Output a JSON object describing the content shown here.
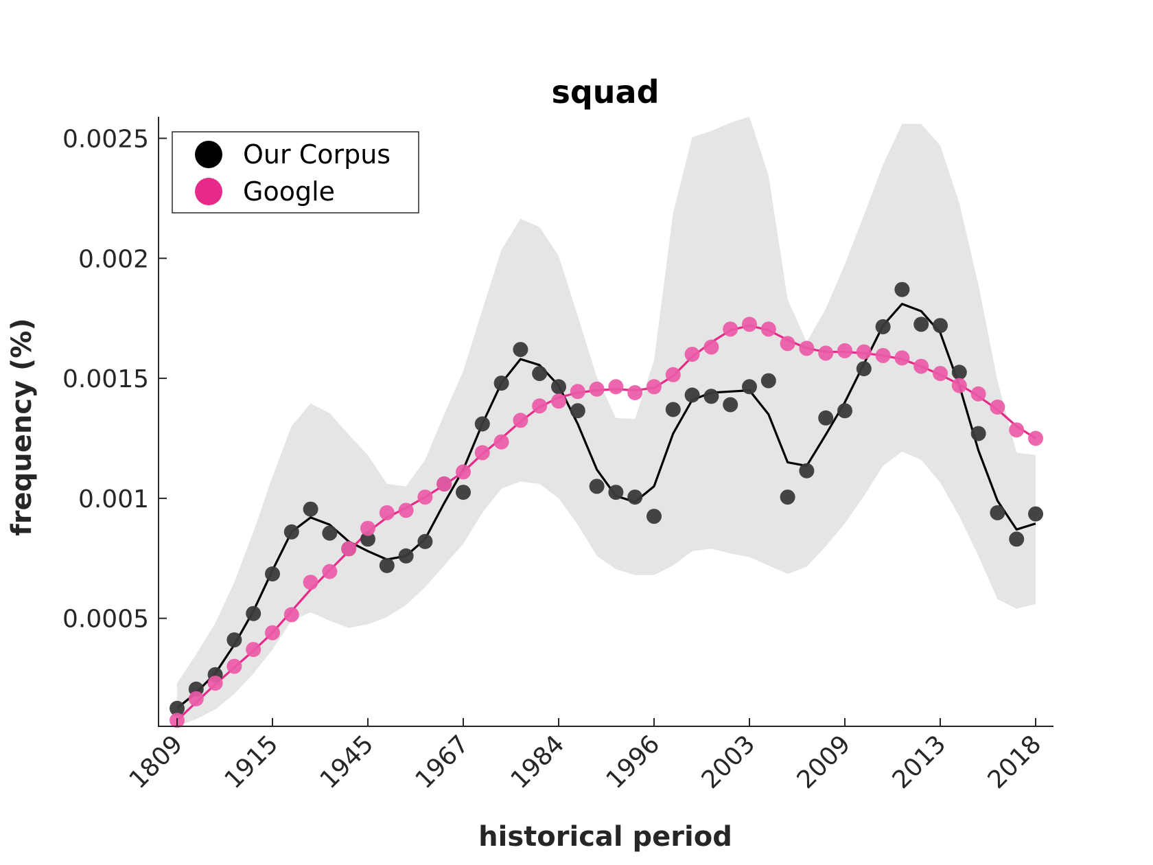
{
  "chart_data": {
    "type": "line",
    "title": "squad",
    "xlabel": "historical period",
    "ylabel": "frequency (%)",
    "x_tick_labels": [
      "1809",
      "1915",
      "1945",
      "1967",
      "1984",
      "1996",
      "2003",
      "2009",
      "2013",
      "2018"
    ],
    "y_ticks": [
      0.0005,
      0.001,
      0.0015,
      0.002,
      0.0025
    ],
    "y_tick_labels": [
      "0.0005",
      "0.001",
      "0.0015",
      "0.002",
      "0.0025"
    ],
    "ylim": [
      5e-05,
      0.00259
    ],
    "grid": false,
    "legend_position": "top-left",
    "series": [
      {
        "name": "Our Corpus",
        "color": "#000000",
        "marker_color": "#3a3a3a",
        "points": [
          0.000125,
          0.000205,
          0.000265,
          0.00041,
          0.00052,
          0.000685,
          0.00086,
          0.000955,
          0.000855,
          0.00079,
          0.00083,
          0.00072,
          0.00076,
          0.00082,
          0.00106,
          0.001025,
          0.00131,
          0.00148,
          0.00162,
          0.00152,
          0.001465,
          0.001365,
          0.00105,
          0.001025,
          0.001005,
          0.000925,
          0.00137,
          0.00143,
          0.001425,
          0.00139,
          0.001465,
          0.00149,
          0.001005,
          0.001115,
          0.001335,
          0.001365,
          0.00154,
          0.001715,
          0.00187,
          0.001725,
          0.00172,
          0.001525,
          0.00127,
          0.00094,
          0.00083,
          0.000935
        ],
        "smooth": [
          0.000125,
          0.00019,
          0.00027,
          0.00039,
          0.00053,
          0.0007,
          0.00086,
          0.00092,
          0.00089,
          0.00082,
          0.00078,
          0.000745,
          0.00076,
          0.00083,
          0.00098,
          0.00112,
          0.00131,
          0.00148,
          0.00158,
          0.001555,
          0.00147,
          0.00131,
          0.00112,
          0.00101,
          0.000985,
          0.00105,
          0.00127,
          0.00141,
          0.00144,
          0.001445,
          0.00145,
          0.00135,
          0.00115,
          0.001135,
          0.001265,
          0.0014,
          0.00156,
          0.00172,
          0.00181,
          0.00178,
          0.00169,
          0.00147,
          0.0012,
          0.00099,
          0.00087,
          0.000895
        ],
        "band_upper": [
          0.00023,
          0.00035,
          0.00048,
          0.00065,
          0.00086,
          0.00109,
          0.0013,
          0.001395,
          0.001355,
          0.001265,
          0.00118,
          0.00106,
          0.00105,
          0.00116,
          0.00135,
          0.00153,
          0.001785,
          0.002035,
          0.002165,
          0.00213,
          0.00201,
          0.00176,
          0.001505,
          0.001335,
          0.00133,
          0.001575,
          0.00219,
          0.002505,
          0.00253,
          0.002565,
          0.00259,
          0.002345,
          0.00183,
          0.00165,
          0.00179,
          0.001975,
          0.00218,
          0.00239,
          0.00256,
          0.00256,
          0.00247,
          0.00223,
          0.00189,
          0.00149,
          0.00119,
          0.00118
        ],
        "band_lower": [
          5e-05,
          8e-05,
          0.00012,
          0.000185,
          0.00027,
          0.00037,
          0.00049,
          0.000525,
          0.00049,
          0.00046,
          0.000475,
          0.000505,
          0.000555,
          0.00063,
          0.00072,
          0.00081,
          0.00094,
          0.00104,
          0.00107,
          0.00106,
          0.001,
          0.00089,
          0.00076,
          0.000705,
          0.00068,
          0.00068,
          0.00072,
          0.00078,
          0.00079,
          0.00077,
          0.000755,
          0.00072,
          0.000685,
          0.000715,
          0.0008,
          0.000895,
          0.00101,
          0.001135,
          0.001195,
          0.00116,
          0.001065,
          0.000925,
          0.00076,
          0.00058,
          0.00054,
          0.00056
        ]
      },
      {
        "name": "Google",
        "color": "#e7298a",
        "marker_color": "#ea5aa6",
        "points": [
          7.5e-05,
          0.000165,
          0.00023,
          0.0003,
          0.00037,
          0.00044,
          0.000515,
          0.00065,
          0.000695,
          0.00079,
          0.000875,
          0.00094,
          0.00095,
          0.001005,
          0.00106,
          0.00111,
          0.00119,
          0.001235,
          0.001325,
          0.001385,
          0.001405,
          0.001445,
          0.001455,
          0.001465,
          0.00144,
          0.001465,
          0.001515,
          0.0016,
          0.00163,
          0.001705,
          0.001725,
          0.001705,
          0.001645,
          0.001625,
          0.001605,
          0.001615,
          0.00161,
          0.001595,
          0.001585,
          0.00155,
          0.00152,
          0.00147,
          0.001435,
          0.00138,
          0.001285,
          0.00125
        ],
        "smooth": [
          7.5e-05,
          0.00015,
          0.000225,
          0.000295,
          0.000365,
          0.00044,
          0.00053,
          0.00062,
          0.0007,
          0.00078,
          0.00086,
          0.00092,
          0.00096,
          0.001005,
          0.001055,
          0.00111,
          0.001185,
          0.00125,
          0.00132,
          0.00138,
          0.00142,
          0.00144,
          0.00145,
          0.001455,
          0.00145,
          0.00146,
          0.00151,
          0.00159,
          0.00165,
          0.0017,
          0.00172,
          0.0017,
          0.00166,
          0.001625,
          0.00161,
          0.00161,
          0.001605,
          0.001595,
          0.00158,
          0.00155,
          0.001515,
          0.001475,
          0.001425,
          0.00137,
          0.0013,
          0.00125
        ]
      }
    ]
  }
}
